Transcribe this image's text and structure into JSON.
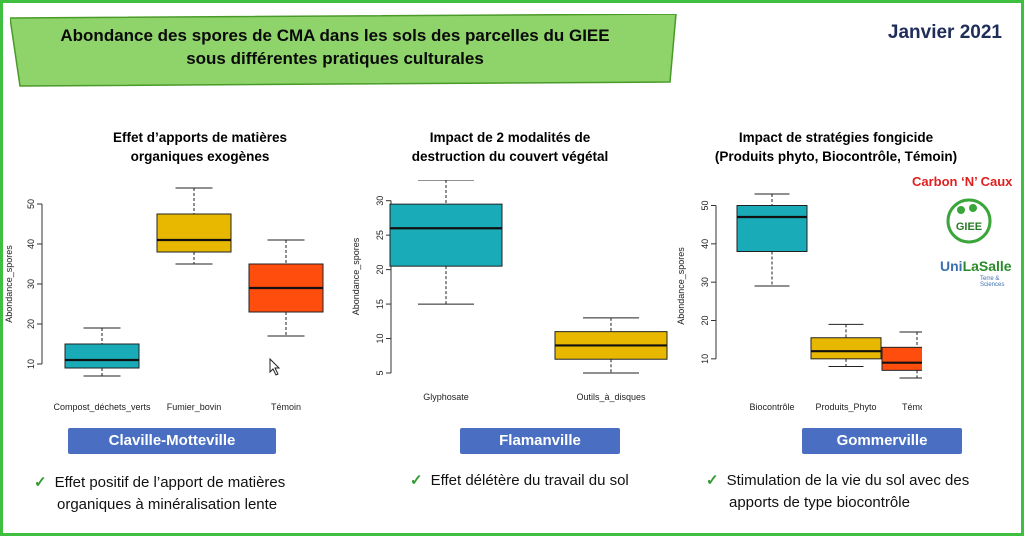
{
  "header": {
    "title_line1": "Abondance des spores de CMA dans les sols des parcelles du GIEE",
    "title_line2": "sous différentes pratiques culturales",
    "date": "Janvier 2021",
    "banner_color": "#8ed46a"
  },
  "panels": [
    {
      "title_line1": "Effet d’apports de matières",
      "title_line2": "organiques exogènes",
      "site": "Claville-Motteville",
      "conclusion_line1": "Effet positif de l’apport de matières",
      "conclusion_line2": "organiques à minéralisation lente"
    },
    {
      "title_line1": "Impact de 2 modalités de",
      "title_line2": "destruction du couvert végétal",
      "site": "Flamanville",
      "conclusion_line1": "Effet délétère du travail du sol",
      "conclusion_line2": ""
    },
    {
      "title_line1": "Impact de stratégies fongicide",
      "title_line2": "(Produits phyto, Biocontrôle, Témoin)",
      "site": "Gommerville",
      "conclusion_line1": "Stimulation de la vie du sol avec des",
      "conclusion_line2": "apports de type biocontrôle"
    }
  ],
  "logos": {
    "carbon": "Carbon ‘N’ Caux",
    "giee": "GIEE",
    "unilasalle_uni": "Uni",
    "unilasalle_rest": "LaSalle",
    "unilasalle_sub": "Terre & Sciences"
  },
  "chart_data": [
    {
      "type": "box",
      "ylabel": "Abondance_spores",
      "ylim": [
        6,
        54
      ],
      "yticks": [
        10,
        20,
        30,
        40,
        50
      ],
      "categories": [
        "Compost_déchets_verts",
        "Fumier_bovin",
        "Témoin"
      ],
      "boxes": [
        {
          "min": 7,
          "q1": 9,
          "median": 11,
          "q3": 15,
          "max": 19,
          "color": "#1aabb8"
        },
        {
          "min": 35,
          "q1": 38,
          "median": 41,
          "q3": 47.5,
          "max": 54,
          "color": "#e8b800"
        },
        {
          "min": 17,
          "q1": 23,
          "median": 29,
          "q3": 35,
          "max": 41,
          "color": "#ff4d0d"
        }
      ]
    },
    {
      "type": "box",
      "ylabel": "Abondance_spores",
      "ylim": [
        5,
        33
      ],
      "yticks": [
        5,
        10,
        15,
        20,
        25,
        30
      ],
      "categories": [
        "Glyphosate",
        "Outils_à_disques"
      ],
      "boxes": [
        {
          "min": 15,
          "q1": 20.5,
          "median": 26,
          "q3": 29.5,
          "max": 33,
          "color": "#1aabb8"
        },
        {
          "min": 5,
          "q1": 7,
          "median": 9,
          "q3": 11,
          "max": 13,
          "color": "#e8b800"
        }
      ]
    },
    {
      "type": "box",
      "ylabel": "Abondance_spores",
      "ylim": [
        5,
        53
      ],
      "yticks": [
        10,
        20,
        30,
        40,
        50
      ],
      "categories": [
        "Biocontrôle",
        "Produits_Phyto",
        "Témoin"
      ],
      "boxes": [
        {
          "min": 29,
          "q1": 38,
          "median": 47,
          "q3": 50,
          "max": 53,
          "color": "#1aabb8"
        },
        {
          "min": 8,
          "q1": 10,
          "median": 12,
          "q3": 15.5,
          "max": 19,
          "color": "#e8b800"
        },
        {
          "min": 5,
          "q1": 7,
          "median": 9,
          "q3": 13,
          "max": 17,
          "color": "#ff4d0d"
        }
      ]
    }
  ]
}
